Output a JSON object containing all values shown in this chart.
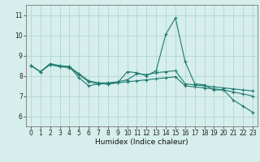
{
  "title": "",
  "xlabel": "Humidex (Indice chaleur)",
  "bg_color": "#d6eeec",
  "line_color": "#1e7a6e",
  "grid_color": "#a8d4cf",
  "xlim": [
    -0.5,
    23.5
  ],
  "ylim": [
    5.5,
    11.5
  ],
  "xticks": [
    0,
    1,
    2,
    3,
    4,
    5,
    6,
    7,
    8,
    9,
    10,
    11,
    12,
    13,
    14,
    15,
    16,
    17,
    18,
    19,
    20,
    21,
    22,
    23
  ],
  "yticks": [
    6,
    7,
    8,
    9,
    10,
    11
  ],
  "lines": [
    [
      8.5,
      8.2,
      8.6,
      8.5,
      8.45,
      7.9,
      7.5,
      7.6,
      7.6,
      7.65,
      8.2,
      8.15,
      8.0,
      8.25,
      10.05,
      10.85,
      8.7,
      7.6,
      7.55,
      7.3,
      7.3,
      6.8,
      6.5,
      6.2
    ],
    [
      8.5,
      8.2,
      8.55,
      8.45,
      8.45,
      8.1,
      7.75,
      7.65,
      7.65,
      7.7,
      7.8,
      8.1,
      8.05,
      8.15,
      8.2,
      8.25,
      7.6,
      7.55,
      7.5,
      7.45,
      7.4,
      7.35,
      7.3,
      7.25
    ],
    [
      8.5,
      8.2,
      8.55,
      8.45,
      8.4,
      8.05,
      7.7,
      7.6,
      7.6,
      7.65,
      7.7,
      7.75,
      7.8,
      7.85,
      7.9,
      7.95,
      7.5,
      7.45,
      7.4,
      7.35,
      7.3,
      7.2,
      7.1,
      7.0
    ]
  ],
  "tick_fontsize": 5.5,
  "xlabel_fontsize": 6.5,
  "spine_color": "#777777"
}
